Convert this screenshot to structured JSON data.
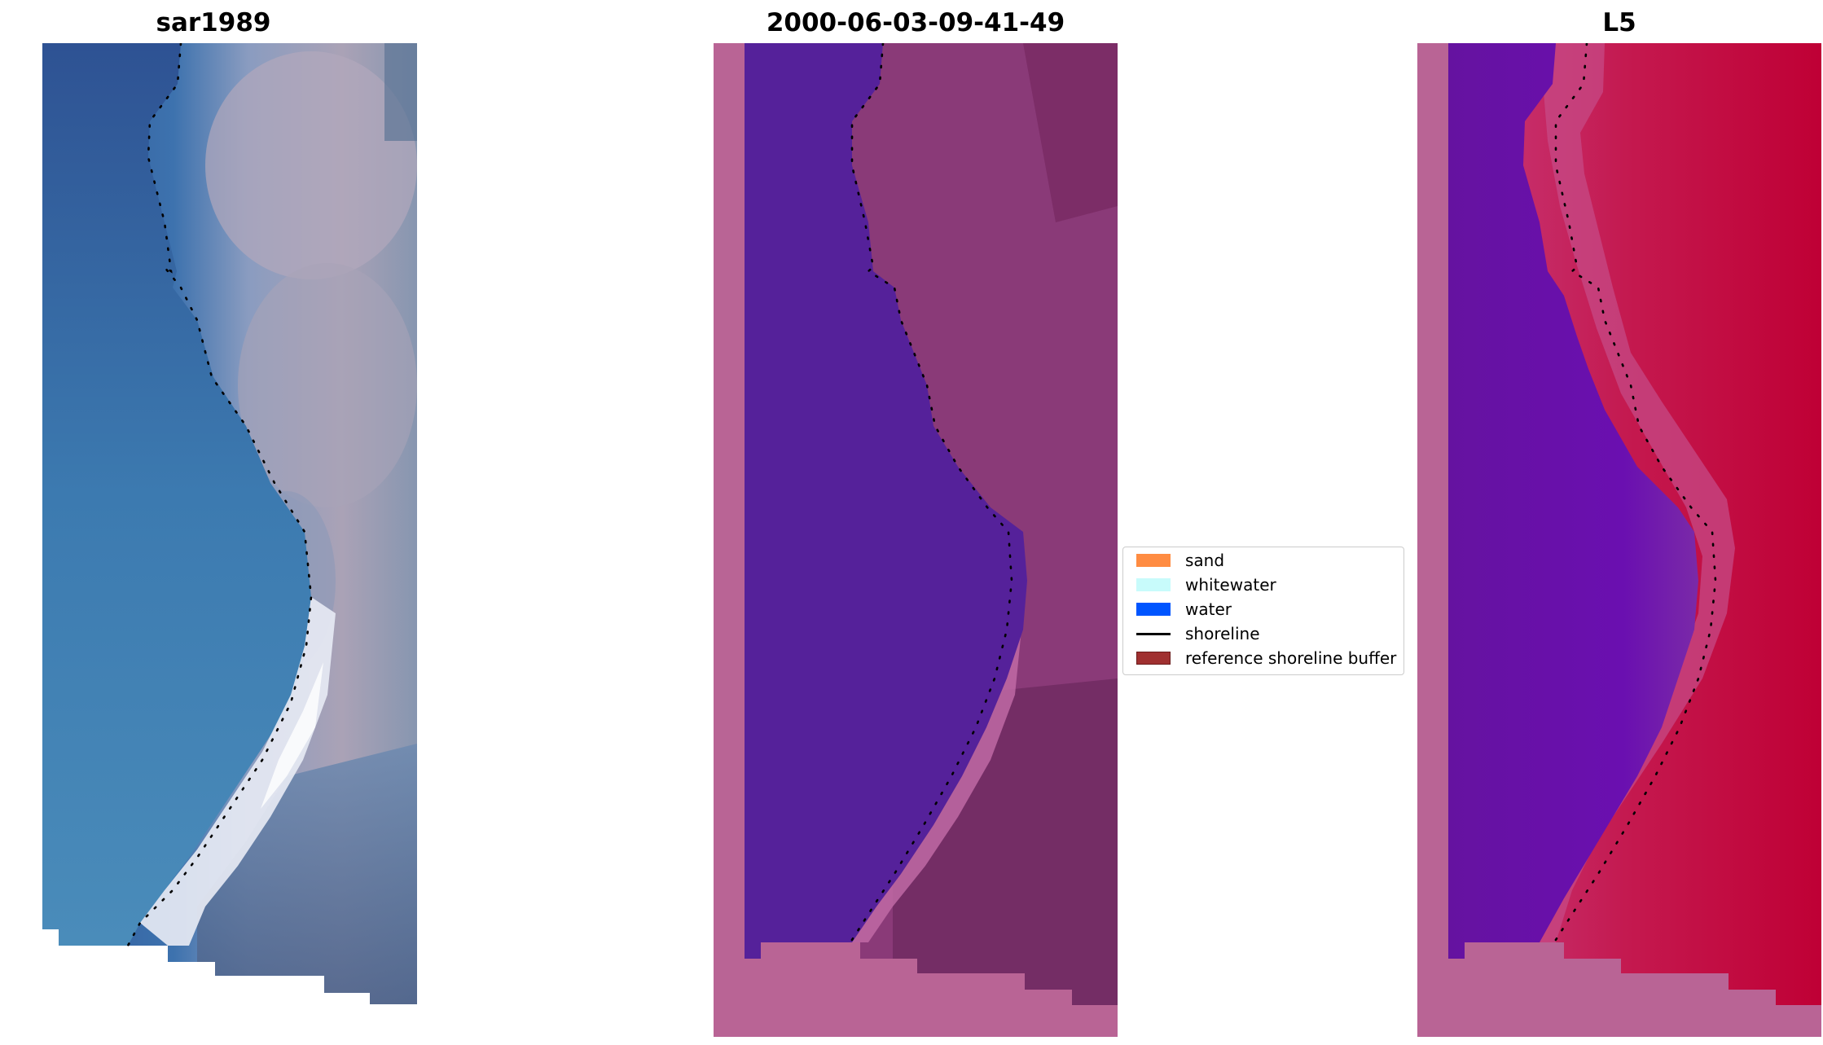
{
  "panels": [
    {
      "title": "sar1989"
    },
    {
      "title": "2000-06-03-09-41-49"
    },
    {
      "title": "L5"
    }
  ],
  "legend": {
    "items": [
      {
        "label": "sand",
        "color": "#ff8c42"
      },
      {
        "label": "whitewater",
        "color": "#c8fbfb"
      },
      {
        "label": "water",
        "color": "#0055ff"
      },
      {
        "label": "shoreline",
        "color": "#000000"
      },
      {
        "label": "reference shoreline buffer",
        "color": "#a03030"
      }
    ]
  },
  "colors": {
    "rgb_water": "#3c6ea8",
    "rgb_land": "#a8a0b0",
    "rgb_surf": "#e8eaf2",
    "class_water": "#55219a",
    "class_land": "#8a3a78",
    "class_nodata": "#b96495",
    "index_water": "#6a10a8",
    "index_land": "#c0154a",
    "index_nodata": "#b96495"
  }
}
